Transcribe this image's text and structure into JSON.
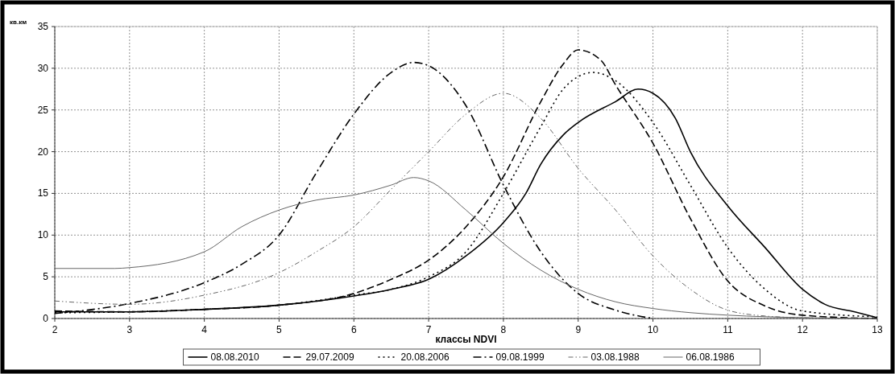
{
  "chart_data": {
    "type": "line",
    "xlabel": "классы NDVI",
    "ylabel": "кв.км",
    "xlim": [
      2,
      13
    ],
    "xticks": [
      2,
      3,
      4,
      5,
      6,
      7,
      8,
      9,
      10,
      11,
      12,
      13
    ],
    "ylim": [
      0,
      35
    ],
    "yticks": [
      0,
      5,
      10,
      15,
      20,
      25,
      30,
      35
    ],
    "grid": true,
    "legend": "bottom",
    "series": [
      {
        "name": "08.08.2010",
        "color": "#000000",
        "line_style": "solid",
        "x": [
          2,
          3,
          4,
          5,
          6,
          6.5,
          7,
          7.5,
          8,
          8.3,
          8.5,
          8.8,
          9,
          9.5,
          9.8,
          10,
          10.3,
          10.5,
          11,
          11.5,
          12,
          12.3,
          12.7,
          13
        ],
        "values": [
          0.8,
          0.8,
          1.1,
          1.6,
          2.7,
          3.5,
          4.7,
          7.5,
          11.5,
          15,
          18.5,
          22,
          23.5,
          26,
          27.5,
          27,
          24,
          20,
          13.5,
          8.5,
          3.5,
          1.7,
          0.8,
          0.1
        ]
      },
      {
        "name": "29.07.2009",
        "color": "#000000",
        "line_style": "dashed",
        "x": [
          2,
          3,
          4,
          5,
          6,
          6.5,
          7,
          7.5,
          8,
          8.5,
          8.8,
          9,
          9.3,
          9.5,
          10,
          10.5,
          11,
          11.5,
          12,
          13
        ],
        "values": [
          0.9,
          0.8,
          1.1,
          1.6,
          3,
          4.7,
          7,
          11,
          17,
          26,
          30.5,
          32.2,
          31,
          28,
          21,
          12,
          4.5,
          1.5,
          0.4,
          0
        ]
      },
      {
        "name": "20.08.2006",
        "color": "#000000",
        "line_style": "dotted",
        "x": [
          2,
          3,
          4,
          5,
          6,
          6.5,
          7,
          7.5,
          8,
          8.5,
          8.8,
          9,
          9.2,
          9.5,
          10,
          10.5,
          11,
          11.5,
          12,
          13
        ],
        "values": [
          0.7,
          0.8,
          1.1,
          1.6,
          2.8,
          3.5,
          5,
          8,
          15,
          23,
          27.5,
          29,
          29.5,
          28.5,
          23.5,
          16,
          8.5,
          3.5,
          0.9,
          0.2
        ]
      },
      {
        "name": "09.08.1999",
        "color": "#000000",
        "line_style": "dashdot",
        "x": [
          2,
          3,
          4,
          4.5,
          5,
          5.5,
          6,
          6.5,
          6.8,
          7,
          7.5,
          8,
          8.5,
          9,
          9.5,
          10
        ],
        "values": [
          0.6,
          1.8,
          4.3,
          6.5,
          10,
          17.5,
          24.5,
          29.5,
          30.7,
          30.3,
          25.5,
          16,
          8,
          3,
          1,
          0
        ]
      },
      {
        "name": "03.08.1988",
        "color": "#666666",
        "line_style": "dashdotdot",
        "x": [
          2,
          3,
          4,
          5,
          5.5,
          6,
          6.5,
          7,
          7.5,
          8,
          8.5,
          9,
          9.5,
          10,
          10.5,
          11,
          11.5,
          12,
          13
        ],
        "values": [
          2.1,
          1.7,
          2.8,
          5.5,
          8,
          11,
          15.5,
          20,
          24.5,
          27,
          24,
          18,
          13,
          7.5,
          3.5,
          1,
          0.3,
          0.1,
          0
        ]
      },
      {
        "name": "06.08.1986",
        "color": "#666666",
        "line_style": "solid",
        "x": [
          2,
          2.8,
          3,
          4,
          4.5,
          5,
          5.5,
          6,
          6.5,
          6.8,
          7,
          7.5,
          8,
          8.5,
          9,
          9.5,
          10,
          10.5,
          11,
          12,
          13
        ],
        "values": [
          6,
          6,
          6.1,
          8,
          11,
          13,
          14.2,
          14.8,
          16,
          16.9,
          16.5,
          13,
          9,
          5.8,
          3.5,
          2,
          1.2,
          0.7,
          0.4,
          0.1,
          0
        ]
      }
    ]
  }
}
